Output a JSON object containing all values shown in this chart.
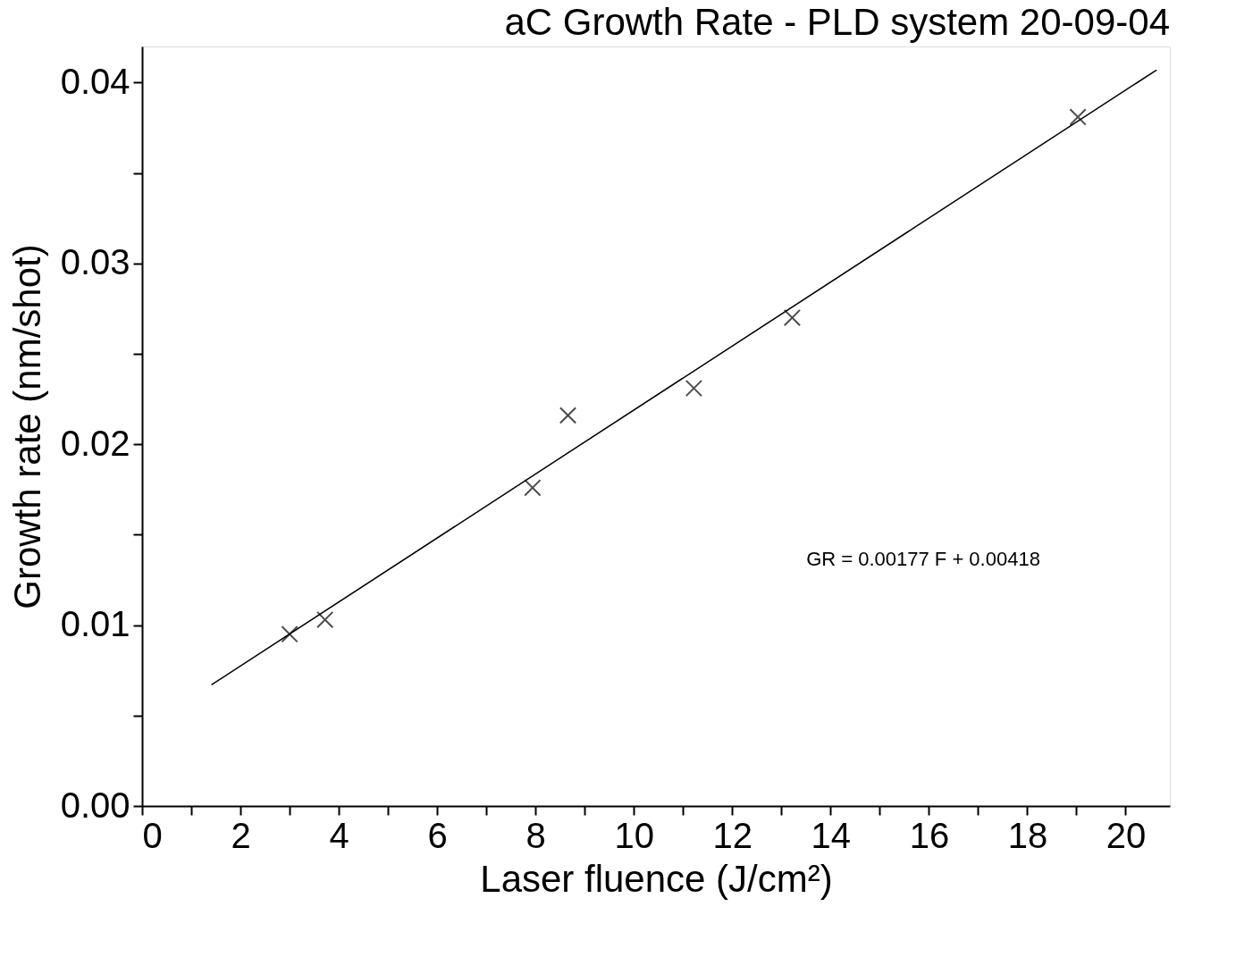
{
  "chart_data": {
    "type": "scatter",
    "title": "aC Growth Rate - PLD system 20-09-04",
    "xlabel": "Laser fluence (J/cm²)",
    "ylabel": "Growth rate (nm/shot)",
    "series": [
      {
        "color": "#000000",
        "marker": "cross",
        "x": [
          3.0,
          3.72,
          7.94,
          8.66,
          11.22,
          13.22,
          19.03
        ],
        "values": [
          0.0095,
          0.0103,
          0.0176,
          0.0216,
          0.0231,
          0.027,
          0.0381
        ]
      },
      {
        "type": "line",
        "color": "#000000",
        "line_style": "solid",
        "x": [
          1.41,
          20.63
        ],
        "values": [
          0.0067,
          0.0407
        ]
      }
    ],
    "annotations": [
      "GR = 0.00177 F + 0.00418"
    ],
    "xlim": [
      0,
      20.9
    ],
    "ylim": [
      0,
      0.042
    ],
    "xticks": [
      0,
      {
        "value": 1,
        "label": null
      },
      2,
      {
        "value": 3,
        "label": null
      },
      4,
      {
        "value": 5,
        "label": null
      },
      6,
      {
        "value": 7,
        "label": null
      },
      8,
      {
        "value": 9,
        "label": null
      },
      10,
      {
        "value": 11,
        "label": null
      },
      12,
      {
        "value": 13,
        "label": null
      },
      14,
      {
        "value": 15,
        "label": null
      },
      16,
      {
        "value": 17,
        "label": null
      },
      18,
      {
        "value": 19,
        "label": null
      },
      20
    ],
    "yticks": [
      {
        "value": 0,
        "label": "0.00"
      },
      {
        "value": 0.005,
        "label": null
      },
      {
        "value": 0.01,
        "label": "0.01"
      },
      {
        "value": 0.015,
        "label": null
      },
      {
        "value": 0.02,
        "label": "0.02"
      },
      {
        "value": 0.025,
        "label": null
      },
      {
        "value": 0.03,
        "label": "0.03"
      },
      {
        "value": 0.035,
        "label": null
      },
      {
        "value": 0.04,
        "label": "0.04"
      }
    ],
    "grid": false
  }
}
